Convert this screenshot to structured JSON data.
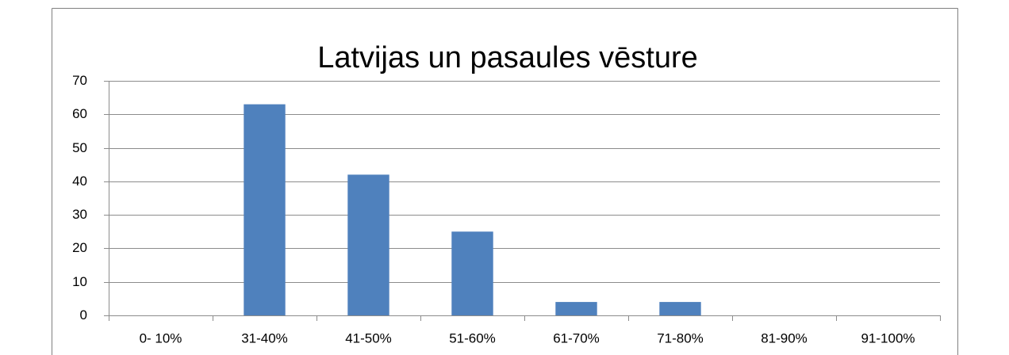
{
  "chart_data": {
    "type": "bar",
    "title": "Latvijas un pasaules vēsture",
    "categories": [
      "0- 10%",
      "31-40%",
      "41-50%",
      "51-60%",
      "61-70%",
      "71-80%",
      "81-90%",
      "91-100%"
    ],
    "values": [
      0,
      63,
      42,
      25,
      4,
      4,
      0,
      0
    ],
    "color": "#4f81bd",
    "ylim": [
      0,
      70
    ],
    "yticks": [
      0,
      10,
      20,
      30,
      40,
      50,
      60,
      70
    ],
    "grid": true
  }
}
